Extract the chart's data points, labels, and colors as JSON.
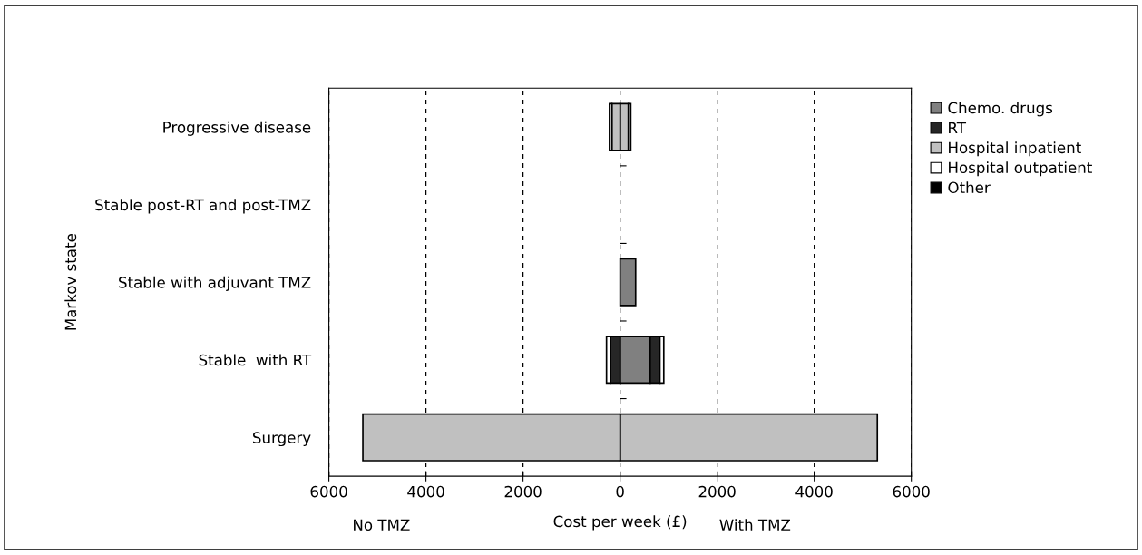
{
  "chart_data": {
    "type": "bar",
    "orientation": "horizontal",
    "stacked": true,
    "categories": [
      "Progressive disease",
      "Stable post-RT and post-TMZ",
      "Stable with adjuvant TMZ",
      "Stable  with RT",
      "Surgery"
    ],
    "series": [
      {
        "name": "Chemo. drugs",
        "color": "#808080",
        "values": [
          null,
          null,
          320,
          620,
          null
        ]
      },
      {
        "name": "RT",
        "color": "#262626",
        "values": [
          null,
          null,
          null,
          200,
          null
        ]
      },
      {
        "name": "Hospital inpatient",
        "color": "#c0c0c0",
        "values": [
          170,
          null,
          null,
          null,
          5300
        ]
      },
      {
        "name": "Hospital outpatient",
        "color": "#ffffff",
        "values": [
          50,
          null,
          null,
          80,
          null
        ]
      },
      {
        "name": "Other",
        "color": "#000000",
        "values": [
          null,
          null,
          null,
          null,
          null
        ]
      },
      {
        "color": "#262626",
        "values": [
          null,
          null,
          null,
          -200,
          null
        ]
      },
      {
        "color": "#c0c0c0",
        "values": [
          -170,
          null,
          null,
          null,
          -5300
        ]
      },
      {
        "color": "#ffffff",
        "values": [
          -50,
          null,
          null,
          -80,
          null
        ]
      }
    ],
    "xlim": [
      -6000,
      6000
    ],
    "xticks": [
      {
        "value": -6000,
        "label": "6000"
      },
      {
        "value": -4000,
        "label": "4000"
      },
      {
        "value": -2000,
        "label": "2000"
      },
      0,
      2000,
      4000,
      6000
    ],
    "grid": "x",
    "line_style": "dashed",
    "legend": "right",
    "xlabel": "Cost per week (£)",
    "ylabel": "Markov state",
    "annotations": [
      "No TMZ",
      "With TMZ"
    ]
  }
}
